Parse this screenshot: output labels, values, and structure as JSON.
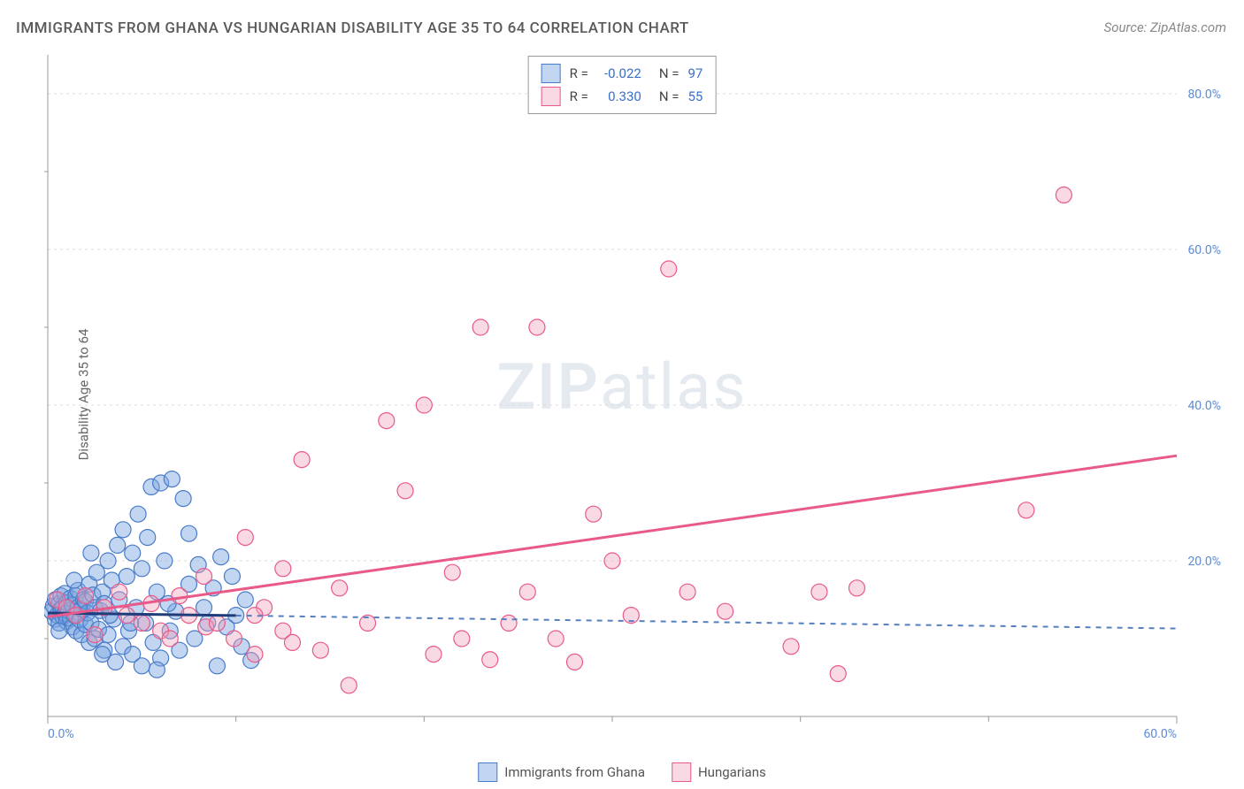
{
  "title": "IMMIGRANTS FROM GHANA VS HUNGARIAN DISABILITY AGE 35 TO 64 CORRELATION CHART",
  "source": "Source: ZipAtlas.com",
  "ylabel": "Disability Age 35 to 64",
  "watermark_a": "ZIP",
  "watermark_b": "atlas",
  "chart": {
    "type": "scatter",
    "background_color": "#ffffff",
    "grid_color": "#dcdcdc",
    "axis_color": "#999999",
    "xlim": [
      0,
      60
    ],
    "ylim": [
      0,
      85
    ],
    "xticks": [
      0,
      60
    ],
    "xtick_labels": [
      "0.0%",
      "60.0%"
    ],
    "yticks": [
      20,
      40,
      60,
      80
    ],
    "ytick_labels": [
      "20.0%",
      "40.0%",
      "60.0%",
      "80.0%"
    ],
    "xtick_minor": [
      10,
      20,
      30,
      40,
      50
    ],
    "ytick_minor": [
      10,
      30,
      50,
      70
    ],
    "series": [
      {
        "name": "Immigrants from Ghana",
        "fill_color": "rgba(120,165,225,0.45)",
        "stroke_color": "#4a7bc8",
        "marker_radius": 9,
        "trend_line": {
          "y_start": 13.3,
          "y_end": 11.3,
          "dashed": true,
          "color": "#5580c0",
          "width": 2,
          "x_end_limit": 10
        },
        "r": "-0.022",
        "n": "97",
        "points": [
          [
            0.2,
            13.5
          ],
          [
            0.3,
            14.2
          ],
          [
            0.4,
            12.5
          ],
          [
            0.4,
            15.0
          ],
          [
            0.5,
            13.0
          ],
          [
            0.6,
            14.5
          ],
          [
            0.6,
            12.0
          ],
          [
            0.7,
            15.5
          ],
          [
            0.7,
            13.8
          ],
          [
            0.8,
            14.0
          ],
          [
            0.8,
            12.8
          ],
          [
            0.9,
            13.2
          ],
          [
            0.9,
            15.8
          ],
          [
            1.0,
            14.6
          ],
          [
            1.0,
            12.2
          ],
          [
            1.1,
            13.6
          ],
          [
            1.2,
            15.2
          ],
          [
            1.2,
            12.6
          ],
          [
            1.3,
            14.3
          ],
          [
            1.3,
            11.5
          ],
          [
            1.4,
            13.0
          ],
          [
            1.5,
            15.5
          ],
          [
            1.5,
            11.0
          ],
          [
            1.6,
            14.0
          ],
          [
            1.6,
            16.2
          ],
          [
            1.7,
            12.4
          ],
          [
            1.8,
            13.8
          ],
          [
            1.8,
            10.5
          ],
          [
            1.9,
            15.0
          ],
          [
            2.0,
            11.8
          ],
          [
            2.0,
            14.8
          ],
          [
            2.1,
            13.3
          ],
          [
            2.2,
            17.0
          ],
          [
            2.2,
            9.5
          ],
          [
            2.3,
            12.0
          ],
          [
            2.4,
            15.6
          ],
          [
            2.5,
            10.0
          ],
          [
            2.5,
            14.0
          ],
          [
            2.6,
            18.5
          ],
          [
            2.7,
            11.2
          ],
          [
            2.8,
            13.6
          ],
          [
            2.9,
            16.0
          ],
          [
            3.0,
            8.5
          ],
          [
            3.0,
            14.5
          ],
          [
            3.2,
            20.0
          ],
          [
            3.2,
            10.5
          ],
          [
            3.4,
            17.5
          ],
          [
            3.5,
            12.5
          ],
          [
            3.6,
            7.0
          ],
          [
            3.7,
            22.0
          ],
          [
            3.8,
            15.0
          ],
          [
            4.0,
            9.0
          ],
          [
            4.0,
            24.0
          ],
          [
            4.2,
            18.0
          ],
          [
            4.3,
            11.0
          ],
          [
            4.5,
            21.0
          ],
          [
            4.5,
            8.0
          ],
          [
            4.7,
            14.0
          ],
          [
            4.8,
            26.0
          ],
          [
            5.0,
            19.0
          ],
          [
            5.0,
            6.5
          ],
          [
            5.2,
            12.0
          ],
          [
            5.3,
            23.0
          ],
          [
            5.5,
            29.5
          ],
          [
            5.6,
            9.5
          ],
          [
            5.8,
            16.0
          ],
          [
            6.0,
            7.5
          ],
          [
            6.0,
            30.0
          ],
          [
            6.2,
            20.0
          ],
          [
            6.5,
            11.0
          ],
          [
            6.6,
            30.5
          ],
          [
            6.8,
            13.5
          ],
          [
            7.0,
            8.5
          ],
          [
            7.2,
            28.0
          ],
          [
            7.5,
            17.0
          ],
          [
            7.5,
            23.5
          ],
          [
            7.8,
            10.0
          ],
          [
            8.0,
            19.5
          ],
          [
            8.3,
            14.0
          ],
          [
            8.5,
            12.0
          ],
          [
            8.8,
            16.5
          ],
          [
            9.0,
            6.5
          ],
          [
            9.2,
            20.5
          ],
          [
            9.5,
            11.5
          ],
          [
            9.8,
            18.0
          ],
          [
            10.0,
            13.0
          ],
          [
            10.3,
            9.0
          ],
          [
            10.5,
            15.0
          ],
          [
            10.8,
            7.2
          ],
          [
            2.3,
            21.0
          ],
          [
            3.3,
            13.0
          ],
          [
            1.4,
            17.5
          ],
          [
            0.6,
            11.0
          ],
          [
            2.9,
            8.0
          ],
          [
            4.4,
            12.0
          ],
          [
            5.8,
            6.0
          ],
          [
            6.4,
            14.5
          ]
        ]
      },
      {
        "name": "Hungarians",
        "fill_color": "rgba(240,160,185,0.40)",
        "stroke_color": "#e85a8a",
        "marker_radius": 9,
        "trend_line": {
          "y_start": 12.8,
          "y_end": 33.5,
          "dashed": false,
          "color": "#e85a8a",
          "width": 3
        },
        "r": "0.330",
        "n": "55",
        "points": [
          [
            0.5,
            15.0
          ],
          [
            1.0,
            14.0
          ],
          [
            1.5,
            13.0
          ],
          [
            2.0,
            15.5
          ],
          [
            2.5,
            10.5
          ],
          [
            3.0,
            14.0
          ],
          [
            3.8,
            16.0
          ],
          [
            4.2,
            13.0
          ],
          [
            5.0,
            12.0
          ],
          [
            5.5,
            14.5
          ],
          [
            6.0,
            11.0
          ],
          [
            6.5,
            10.0
          ],
          [
            7.0,
            15.5
          ],
          [
            7.5,
            13.0
          ],
          [
            8.3,
            18.0
          ],
          [
            8.4,
            11.5
          ],
          [
            9.0,
            12.0
          ],
          [
            9.9,
            10.0
          ],
          [
            10.5,
            23.0
          ],
          [
            11.0,
            8.0
          ],
          [
            11.5,
            14.0
          ],
          [
            12.5,
            19.0
          ],
          [
            12.5,
            11.0
          ],
          [
            13.5,
            33.0
          ],
          [
            14.5,
            8.5
          ],
          [
            15.5,
            16.5
          ],
          [
            16.0,
            4.0
          ],
          [
            17.0,
            12.0
          ],
          [
            18.0,
            38.0
          ],
          [
            19.0,
            29.0
          ],
          [
            20.0,
            40.0
          ],
          [
            20.5,
            8.0
          ],
          [
            21.5,
            18.5
          ],
          [
            22.0,
            10.0
          ],
          [
            23.0,
            50.0
          ],
          [
            23.5,
            7.3
          ],
          [
            24.5,
            12.0
          ],
          [
            25.5,
            16.0
          ],
          [
            26.0,
            50.0
          ],
          [
            27.0,
            10.0
          ],
          [
            28.0,
            7.0
          ],
          [
            29.0,
            26.0
          ],
          [
            30.0,
            20.0
          ],
          [
            31.0,
            13.0
          ],
          [
            33.0,
            57.5
          ],
          [
            34.0,
            16.0
          ],
          [
            36.0,
            13.5
          ],
          [
            39.5,
            9.0
          ],
          [
            41.0,
            16.0
          ],
          [
            42.0,
            5.5
          ],
          [
            43.0,
            16.5
          ],
          [
            52.0,
            26.5
          ],
          [
            54.0,
            67.0
          ],
          [
            11.0,
            13.0
          ],
          [
            13.0,
            9.5
          ]
        ]
      }
    ]
  },
  "bottom_legend": [
    {
      "label": "Immigrants from Ghana",
      "fill": "rgba(120,165,225,0.45)",
      "border": "#4a7bc8"
    },
    {
      "label": "Hungarians",
      "fill": "rgba(240,160,185,0.40)",
      "border": "#e85a8a"
    }
  ]
}
